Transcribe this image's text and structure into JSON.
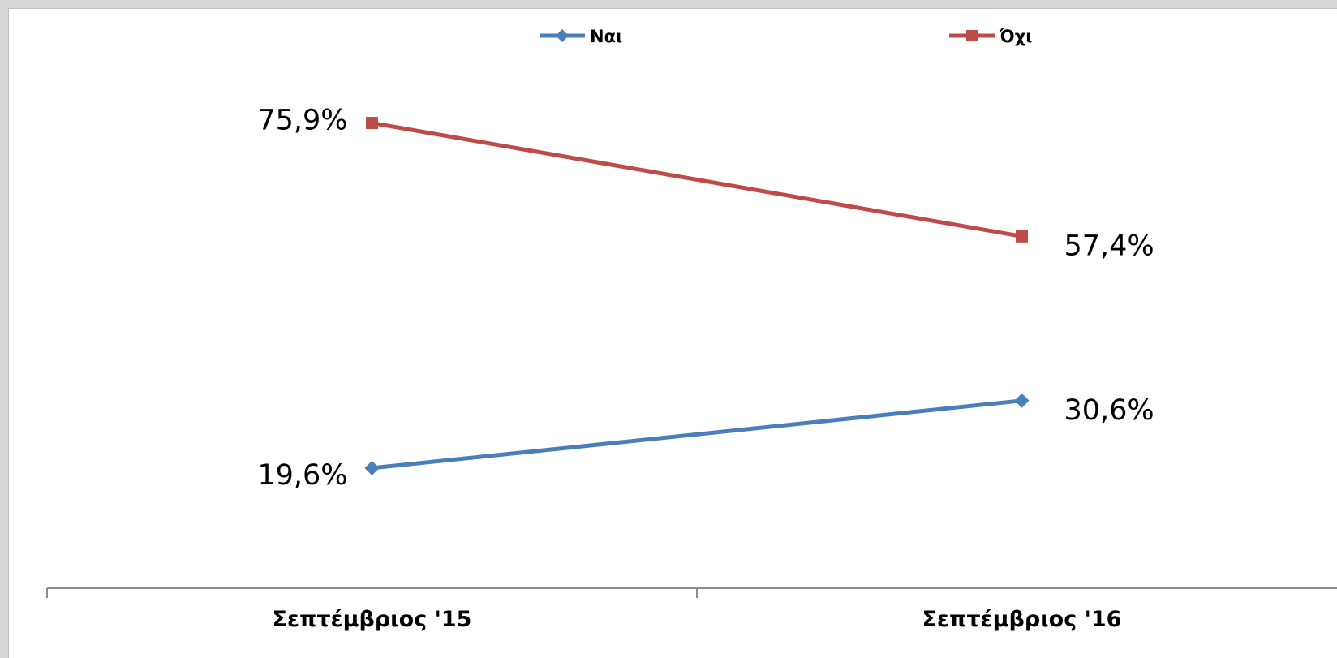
{
  "chart_data": {
    "type": "line",
    "categories": [
      "Σεπτέμβριος '15",
      "Σεπτέμβριος '16"
    ],
    "series": [
      {
        "name": "Ναι",
        "values": [
          19.6,
          30.6
        ],
        "labels": [
          "19,6%",
          "30,6%"
        ],
        "color": "#4a7ebb",
        "marker": "diamond"
      },
      {
        "name": "Όχι",
        "values": [
          75.9,
          57.4
        ],
        "labels": [
          "75,9%",
          "57,4%"
        ],
        "color": "#be4b48",
        "marker": "square"
      }
    ],
    "title": "",
    "xlabel": "",
    "ylabel": "",
    "ylim": [
      0,
      90
    ],
    "legend_position": "top",
    "grid": false
  },
  "colors": {
    "axis": "#8c8c8c",
    "frame_background": "#ffffff",
    "page_background": "#d9d9d9"
  }
}
